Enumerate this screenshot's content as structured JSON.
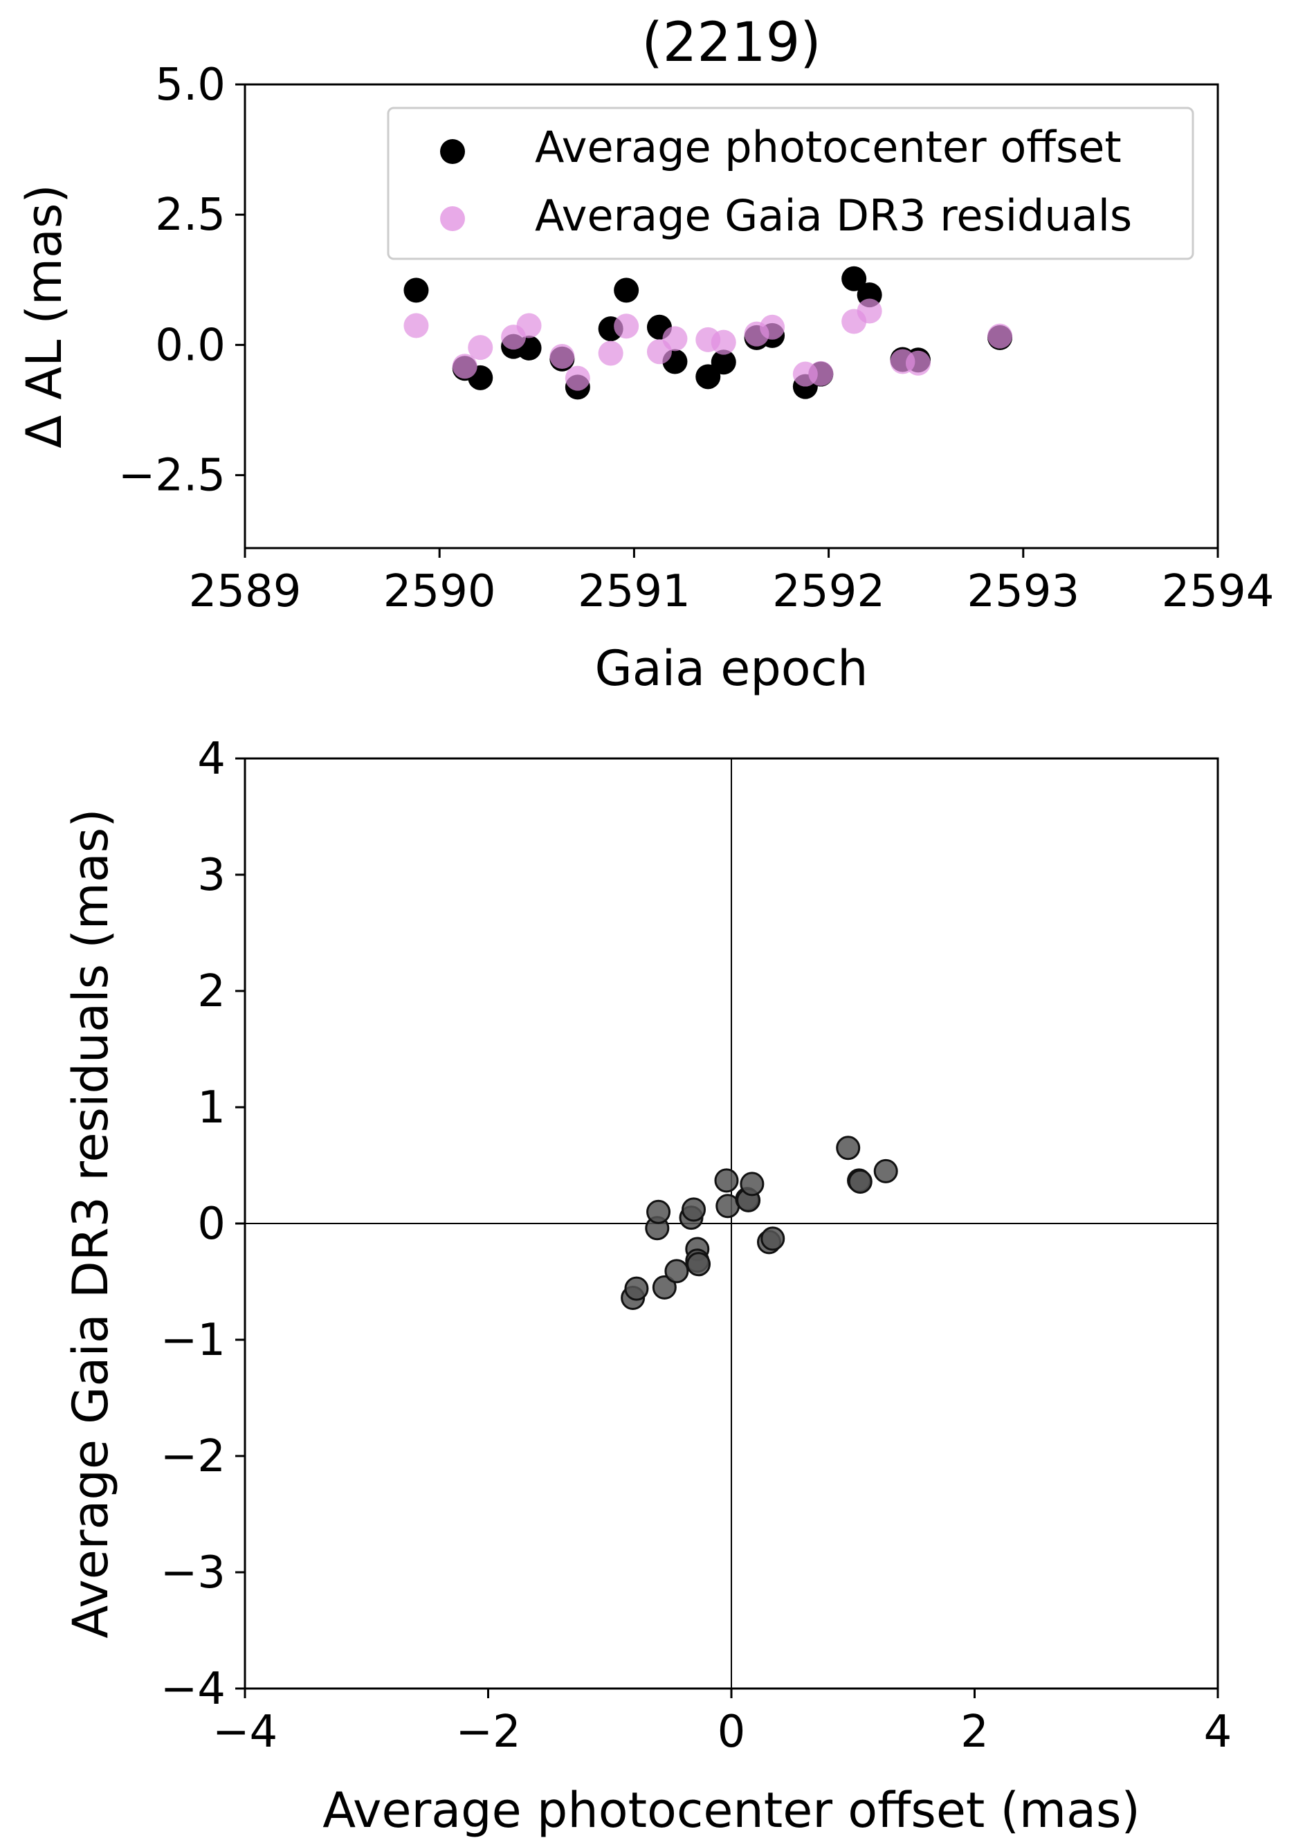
{
  "chart_data": [
    {
      "type": "scatter",
      "title": "(2219)",
      "xlabel": "Gaia epoch",
      "ylabel": "Δ AL (mas)",
      "xlim": [
        2589,
        2594
      ],
      "ylim": [
        -3.9,
        5.0
      ],
      "xticks": [
        2589,
        2590,
        2591,
        2592,
        2593,
        2594
      ],
      "xtick_labels": [
        "2589",
        "2590",
        "2591",
        "2592",
        "2593",
        "2594"
      ],
      "yticks": [
        -2.5,
        0.0,
        2.5,
        5.0
      ],
      "ytick_labels": [
        "−2.5",
        "0.0",
        "2.5",
        "5.0"
      ],
      "legend_position": "top-right",
      "grid": false,
      "series": [
        {
          "name": "Average photocenter offset",
          "color": "#000000",
          "points": [
            {
              "x": 2589.88,
              "y": 1.05
            },
            {
              "x": 2590.13,
              "y": -0.45
            },
            {
              "x": 2590.21,
              "y": -0.63
            },
            {
              "x": 2590.38,
              "y": -0.03
            },
            {
              "x": 2590.46,
              "y": -0.06
            },
            {
              "x": 2590.63,
              "y": -0.27
            },
            {
              "x": 2590.71,
              "y": -0.81
            },
            {
              "x": 2590.88,
              "y": 0.31
            },
            {
              "x": 2590.96,
              "y": 1.05
            },
            {
              "x": 2591.13,
              "y": 0.34
            },
            {
              "x": 2591.21,
              "y": -0.32
            },
            {
              "x": 2591.38,
              "y": -0.61
            },
            {
              "x": 2591.46,
              "y": -0.33
            },
            {
              "x": 2591.63,
              "y": 0.14
            },
            {
              "x": 2591.71,
              "y": 0.18
            },
            {
              "x": 2591.88,
              "y": -0.8
            },
            {
              "x": 2591.96,
              "y": -0.56
            },
            {
              "x": 2592.13,
              "y": 1.27
            },
            {
              "x": 2592.21,
              "y": 0.96
            },
            {
              "x": 2592.38,
              "y": -0.28
            },
            {
              "x": 2592.46,
              "y": -0.29
            },
            {
              "x": 2592.88,
              "y": 0.14
            }
          ]
        },
        {
          "name": "Average Gaia DR3 residuals",
          "color": "#e08ee0",
          "points": [
            {
              "x": 2589.88,
              "y": 0.37
            },
            {
              "x": 2590.13,
              "y": -0.41
            },
            {
              "x": 2590.21,
              "y": -0.05
            },
            {
              "x": 2590.38,
              "y": 0.15
            },
            {
              "x": 2590.46,
              "y": 0.37
            },
            {
              "x": 2590.63,
              "y": -0.22
            },
            {
              "x": 2590.71,
              "y": -0.64
            },
            {
              "x": 2590.88,
              "y": -0.16
            },
            {
              "x": 2590.96,
              "y": 0.36
            },
            {
              "x": 2591.13,
              "y": -0.13
            },
            {
              "x": 2591.21,
              "y": 0.12
            },
            {
              "x": 2591.38,
              "y": 0.1
            },
            {
              "x": 2591.46,
              "y": 0.05
            },
            {
              "x": 2591.63,
              "y": 0.21
            },
            {
              "x": 2591.71,
              "y": 0.34
            },
            {
              "x": 2591.88,
              "y": -0.56
            },
            {
              "x": 2591.96,
              "y": -0.55
            },
            {
              "x": 2592.13,
              "y": 0.45
            },
            {
              "x": 2592.21,
              "y": 0.65
            },
            {
              "x": 2592.38,
              "y": -0.32
            },
            {
              "x": 2592.46,
              "y": -0.35
            },
            {
              "x": 2592.88,
              "y": 0.17
            }
          ]
        }
      ]
    },
    {
      "type": "scatter",
      "title": "",
      "xlabel": "Average photocenter offset (mas)",
      "ylabel": "Average Gaia DR3 residuals (mas)",
      "xlim": [
        -4,
        4
      ],
      "ylim": [
        -4,
        4
      ],
      "xticks": [
        -4,
        -2,
        0,
        2,
        4
      ],
      "xtick_labels": [
        "−4",
        "−2",
        "0",
        "2",
        "4"
      ],
      "yticks": [
        -4,
        -3,
        -2,
        -1,
        0,
        1,
        2,
        3,
        4
      ],
      "ytick_labels": [
        "−4",
        "−3",
        "−2",
        "−1",
        "0",
        "1",
        "2",
        "3",
        "4"
      ],
      "reference_lines": {
        "x": 0,
        "y": 0
      },
      "grid": false,
      "series": [
        {
          "name": "",
          "color": "#555555",
          "points": [
            {
              "x": -0.81,
              "y": -0.64
            },
            {
              "x": -0.78,
              "y": -0.56
            },
            {
              "x": -0.61,
              "y": -0.04
            },
            {
              "x": -0.6,
              "y": 0.1
            },
            {
              "x": -0.55,
              "y": -0.55
            },
            {
              "x": -0.45,
              "y": -0.41
            },
            {
              "x": -0.33,
              "y": 0.05
            },
            {
              "x": -0.31,
              "y": 0.12
            },
            {
              "x": -0.28,
              "y": -0.22
            },
            {
              "x": -0.28,
              "y": -0.32
            },
            {
              "x": -0.27,
              "y": -0.35
            },
            {
              "x": -0.04,
              "y": 0.37
            },
            {
              "x": -0.03,
              "y": 0.15
            },
            {
              "x": 0.13,
              "y": 0.21
            },
            {
              "x": 0.14,
              "y": 0.2
            },
            {
              "x": 0.17,
              "y": 0.34
            },
            {
              "x": 0.31,
              "y": -0.16
            },
            {
              "x": 0.34,
              "y": -0.13
            },
            {
              "x": 0.96,
              "y": 0.65
            },
            {
              "x": 1.05,
              "y": 0.37
            },
            {
              "x": 1.06,
              "y": 0.36
            },
            {
              "x": 1.27,
              "y": 0.45
            }
          ]
        }
      ]
    }
  ]
}
